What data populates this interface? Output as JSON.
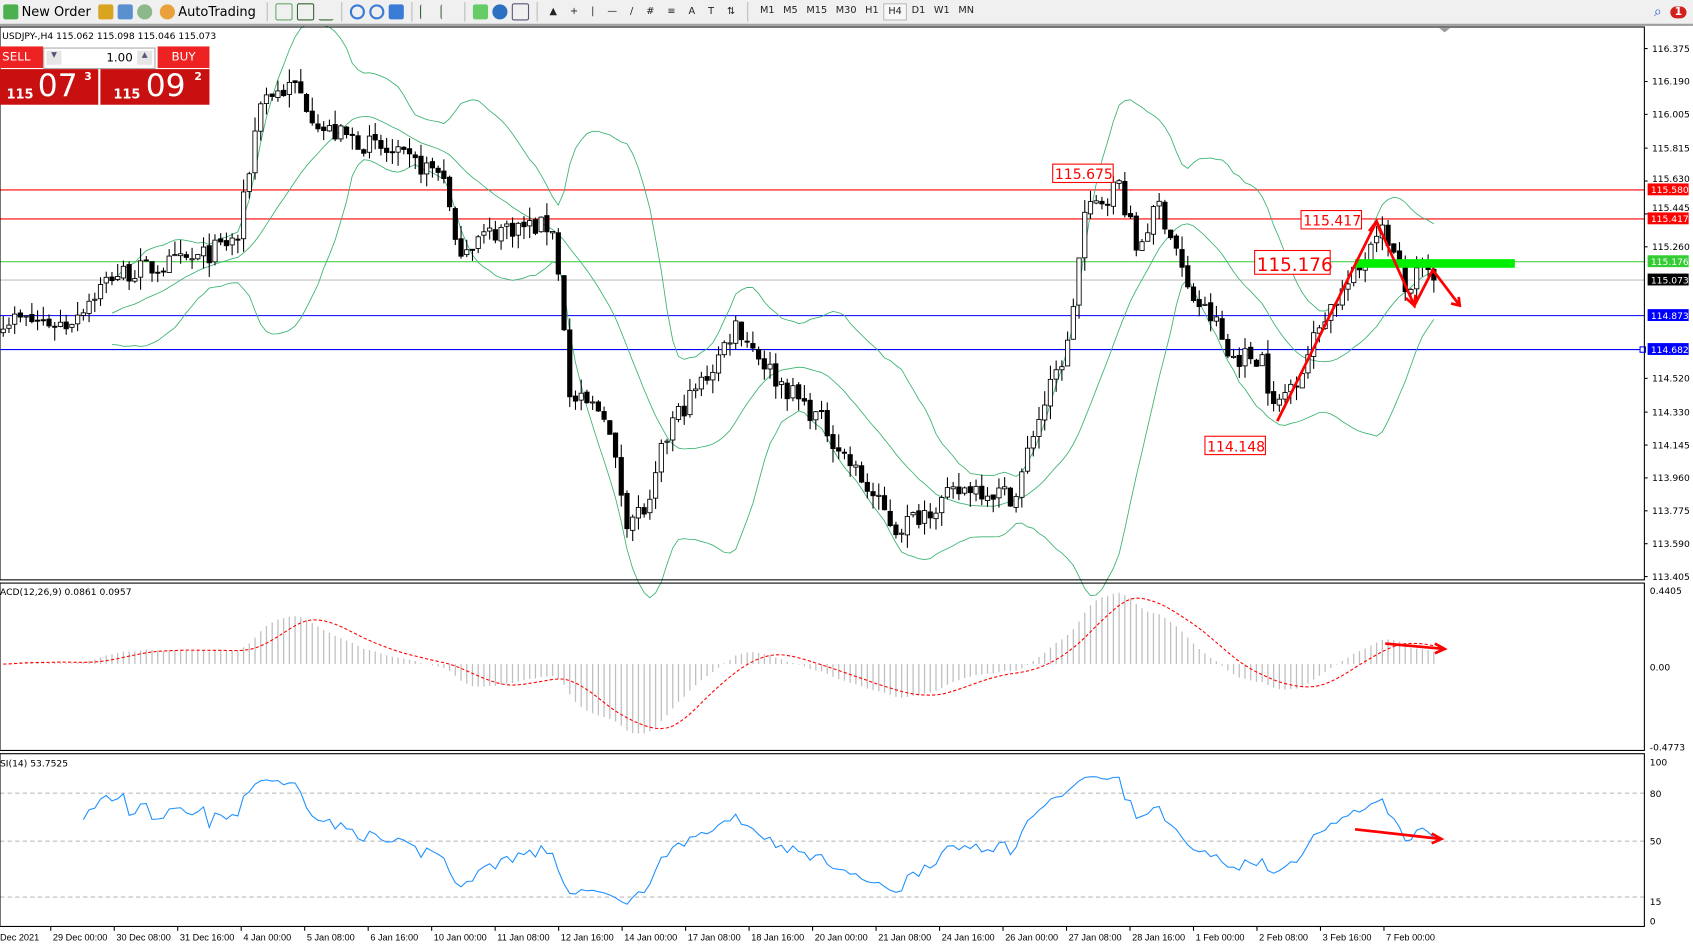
{
  "toolbar": {
    "new_order": "New Order",
    "autotrading": "AutoTrading",
    "timeframes": [
      "M1",
      "M5",
      "M15",
      "M30",
      "H1",
      "H4",
      "D1",
      "W1",
      "MN"
    ],
    "active_timeframe": "H4",
    "notifications": "1"
  },
  "chart": {
    "header": "USDJPY-,H4  115.062 115.098 115.046 115.073",
    "price_ticks": [
      "116.375",
      "116.190",
      "116.005",
      "115.815",
      "115.630",
      "115.445",
      "115.260",
      "114.520",
      "114.330",
      "114.145",
      "113.960",
      "113.775",
      "113.590",
      "113.405"
    ],
    "price_tick_values": [
      116.375,
      116.19,
      116.005,
      115.815,
      115.63,
      115.445,
      115.26,
      114.52,
      114.33,
      114.145,
      113.96,
      113.775,
      113.59,
      113.405
    ],
    "hlines": [
      {
        "price": 115.58,
        "label": "115.580",
        "color": "#ff0000"
      },
      {
        "price": 115.417,
        "label": "115.417",
        "color": "#ff0000"
      },
      {
        "price": 115.176,
        "label": "115.176",
        "color": "#33cc33"
      },
      {
        "price": 115.073,
        "label": "115.073",
        "color": "#000000",
        "line": "#c0c0c0"
      },
      {
        "price": 114.873,
        "label": "114.873",
        "color": "#0000ff"
      },
      {
        "price": 114.682,
        "label": "114.682",
        "color": "#0000ff"
      }
    ],
    "annotations": [
      "115.675",
      "115.417",
      "115.176",
      "114.148"
    ],
    "dates": [
      "Dec 2021",
      "29 Dec 00:00",
      "30 Dec 08:00",
      "31 Dec 16:00",
      "4 Jan 00:00",
      "5 Jan 08:00",
      "6 Jan 16:00",
      "10 Jan 00:00",
      "11 Jan 08:00",
      "12 Jan 16:00",
      "14 Jan 00:00",
      "17 Jan 08:00",
      "18 Jan 16:00",
      "20 Jan 00:00",
      "21 Jan 08:00",
      "24 Jan 16:00",
      "26 Jan 00:00",
      "27 Jan 08:00",
      "28 Jan 16:00",
      "1 Feb 00:00",
      "2 Feb 08:00",
      "3 Feb 16:00",
      "7 Feb 00:00"
    ]
  },
  "trade": {
    "sell": "SELL",
    "buy": "BUY",
    "lots": "1.00",
    "bid_big": "115",
    "bid_main": "07",
    "bid_sup": "3",
    "ask_big": "115",
    "ask_main": "09",
    "ask_sup": "2"
  },
  "macd": {
    "label": "ACD(12,26,9) 0.0861 0.0957",
    "ticks": [
      "0.4405",
      "0.00",
      "-0.4773"
    ]
  },
  "rsi": {
    "label": "SI(14) 53.7525",
    "ticks": [
      "100",
      "80",
      "50",
      "15",
      "0"
    ]
  },
  "chart_data": {
    "type": "candlestick",
    "symbol": "USDJPY-",
    "timeframe": "H4",
    "ylim": [
      113.405,
      116.375
    ],
    "approx_close_path": [
      [
        0,
        114.857
      ],
      [
        11,
        114.826
      ],
      [
        19,
        115.1
      ],
      [
        34,
        115.191
      ],
      [
        41,
        115.312
      ],
      [
        45,
        116.102
      ],
      [
        51,
        116.162
      ],
      [
        56,
        115.919
      ],
      [
        62,
        115.859
      ],
      [
        71,
        115.737
      ],
      [
        77,
        115.676
      ],
      [
        79,
        115.251
      ],
      [
        88,
        115.373
      ],
      [
        96,
        115.373
      ],
      [
        98,
        114.826
      ],
      [
        99,
        114.401
      ],
      [
        105,
        114.34
      ],
      [
        109,
        113.733
      ],
      [
        113,
        113.794
      ],
      [
        115,
        114.097
      ],
      [
        117,
        114.279
      ],
      [
        124,
        114.583
      ],
      [
        128,
        114.826
      ],
      [
        135,
        114.522
      ],
      [
        143,
        114.279
      ],
      [
        148,
        114.037
      ],
      [
        156,
        113.672
      ],
      [
        162,
        113.794
      ],
      [
        169,
        113.915
      ],
      [
        177,
        113.854
      ],
      [
        180,
        114.219
      ],
      [
        186,
        114.705
      ],
      [
        189,
        115.434
      ],
      [
        195,
        115.616
      ],
      [
        198,
        115.251
      ],
      [
        202,
        115.494
      ],
      [
        205,
        115.251
      ],
      [
        207,
        115.008
      ],
      [
        212,
        114.826
      ],
      [
        214,
        114.644
      ],
      [
        220,
        114.644
      ],
      [
        222,
        114.34
      ],
      [
        227,
        114.583
      ],
      [
        231,
        114.887
      ],
      [
        237,
        115.13
      ],
      [
        240,
        115.373
      ],
      [
        242,
        115.312
      ],
      [
        245,
        115.008
      ],
      [
        248,
        115.13
      ],
      [
        250,
        115.073
      ]
    ],
    "colors": {
      "bands": "#3cb371",
      "macd_signal": "#ff0000",
      "macd_hist": "#c0c0c0",
      "rsi": "#1e90ff",
      "annotation": "#ff0000",
      "zone": "#00ee00"
    }
  }
}
